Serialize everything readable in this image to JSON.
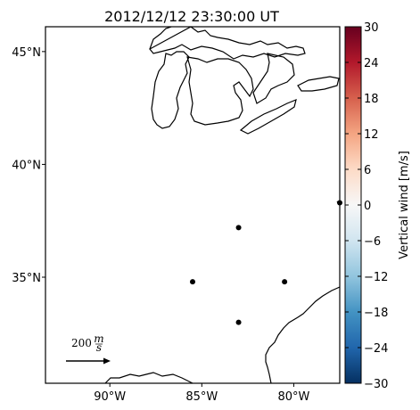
{
  "title": "2012/12/12 23:30:00 UT",
  "map": {
    "lon_range": [
      -93.5,
      -77.5
    ],
    "lat_range": [
      30.3,
      46.1
    ],
    "x_ticks": [
      {
        "lon": -90,
        "label": "90°W"
      },
      {
        "lon": -85,
        "label": "85°W"
      },
      {
        "lon": -80,
        "label": "80°W"
      }
    ],
    "y_ticks": [
      {
        "lat": 45,
        "label": "45°N"
      },
      {
        "lat": 40,
        "label": "40°N"
      },
      {
        "lat": 35,
        "label": "35°N"
      }
    ],
    "stations": [
      {
        "lon": -83.0,
        "lat": 37.2
      },
      {
        "lon": -85.5,
        "lat": 34.8
      },
      {
        "lon": -80.5,
        "lat": 34.8
      },
      {
        "lon": -83.0,
        "lat": 33.0
      },
      {
        "lon": -77.5,
        "lat": 38.3
      }
    ],
    "reference_arrow": {
      "label": "200 m/s",
      "label_value": "200",
      "label_unit_num": "m",
      "label_unit_den": "s",
      "magnitude": 200
    }
  },
  "colorbar": {
    "label": "Vertical wind [m/s]",
    "min": -30,
    "max": 30,
    "colormap": "RdBu_r",
    "ticks": [
      {
        "value": 30,
        "label": "30"
      },
      {
        "value": 24,
        "label": "24"
      },
      {
        "value": 18,
        "label": "18"
      },
      {
        "value": 12,
        "label": "12"
      },
      {
        "value": 6,
        "label": "6"
      },
      {
        "value": 0,
        "label": "0"
      },
      {
        "value": -6,
        "label": "−6"
      },
      {
        "value": -12,
        "label": "−12"
      },
      {
        "value": -18,
        "label": "−18"
      },
      {
        "value": -24,
        "label": "−24"
      },
      {
        "value": -30,
        "label": "−30"
      }
    ],
    "stops": [
      "#67001f",
      "#b2182b",
      "#d6604d",
      "#f4a582",
      "#fddbc7",
      "#f7f7f7",
      "#d1e5f0",
      "#92c5de",
      "#4393c3",
      "#2166ac",
      "#053061"
    ]
  }
}
